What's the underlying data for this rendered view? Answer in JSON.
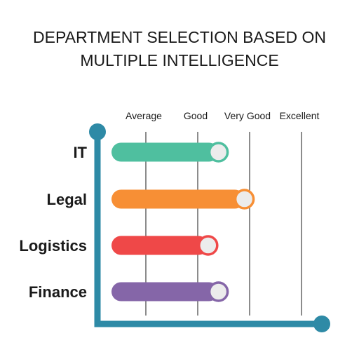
{
  "chart_data": {
    "type": "bar",
    "orientation": "horizontal",
    "title": [
      "DEPARTMENT SELECTION BASED ON",
      "MULTIPLE INTELLIGENCE"
    ],
    "levels": [
      "Average",
      "Good",
      "Very Good",
      "Excellent"
    ],
    "categories": [
      "IT",
      "Legal",
      "Logistics",
      "Finance"
    ],
    "values": [
      2.4,
      2.9,
      2.2,
      2.4
    ],
    "xlim": [
      0,
      4
    ],
    "colors": [
      "#4fbf9f",
      "#f78f35",
      "#ef4848",
      "#8566a8"
    ],
    "axis_color": "#2e8aa6",
    "grid": true
  }
}
